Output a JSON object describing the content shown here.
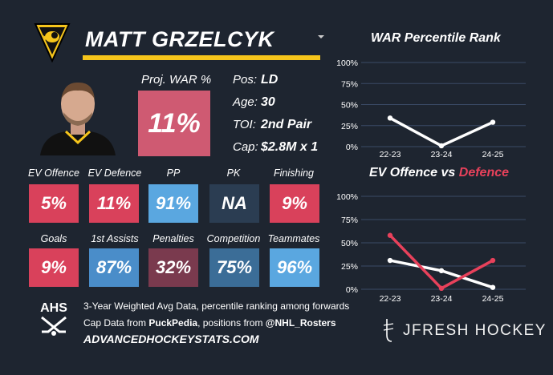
{
  "player": {
    "name": "MATT GRZELCYK",
    "team_logo": "penguins-logo",
    "proj_war_label": "Proj. WAR %",
    "proj_war_value": "11%",
    "stats": [
      {
        "label": "Pos:",
        "value": "LD"
      },
      {
        "label": "Age:",
        "value": "30"
      },
      {
        "label": "TOI:",
        "value": "2nd Pair"
      },
      {
        "label": "Cap:",
        "value": "$2.8M x 1"
      }
    ]
  },
  "tiles_row1": [
    {
      "label": "EV Offence",
      "value": "5%",
      "color": "#d9415b"
    },
    {
      "label": "EV Defence",
      "value": "11%",
      "color": "#d9415b"
    },
    {
      "label": "PP",
      "value": "91%",
      "color": "#5aa7e0"
    },
    {
      "label": "PK",
      "value": "NA",
      "color": "#2b3d52"
    },
    {
      "label": "Finishing",
      "value": "9%",
      "color": "#d9415b"
    }
  ],
  "tiles_row2": [
    {
      "label": "Goals",
      "value": "9%",
      "color": "#d9415b"
    },
    {
      "label": "1st Assists",
      "value": "87%",
      "color": "#4a8dc9"
    },
    {
      "label": "Penalties",
      "value": "32%",
      "color": "#7a3a4e"
    },
    {
      "label": "Competition",
      "value": "75%",
      "color": "#3b6d97"
    },
    {
      "label": "Teammates",
      "value": "96%",
      "color": "#5aa7e0"
    }
  ],
  "footer": {
    "logo_text": "AHS",
    "line1": "3-Year Weighted Avg Data, percentile ranking among forwards",
    "line2_pre": "Cap Data from ",
    "line2_b1": "PuckPedia",
    "line2_mid": ", positions from ",
    "line2_b2": "@NHL_Rosters",
    "site": "ADVANCEDHOCKEYSTATS.COM",
    "brand": "JFRESH HOCKEY"
  },
  "chart_data": [
    {
      "type": "line",
      "title": "WAR Percentile Rank",
      "categories": [
        "22-23",
        "23-24",
        "24-25"
      ],
      "yticks": [
        "100%",
        "75%",
        "50%",
        "25%",
        "0%"
      ],
      "ylim": [
        0,
        100
      ],
      "series": [
        {
          "values": [
            34,
            1,
            29
          ],
          "color": "#ffffff"
        }
      ]
    },
    {
      "type": "line",
      "title_part1": "EV Offence vs ",
      "title_part2": "Defence",
      "categories": [
        "22-23",
        "23-24",
        "24-25"
      ],
      "yticks": [
        "100%",
        "75%",
        "50%",
        "25%",
        "0%"
      ],
      "ylim": [
        0,
        100
      ],
      "series": [
        {
          "values": [
            31,
            20,
            2
          ],
          "color": "#ffffff"
        },
        {
          "values": [
            58,
            1,
            31
          ],
          "color": "#e8415b"
        }
      ]
    }
  ]
}
